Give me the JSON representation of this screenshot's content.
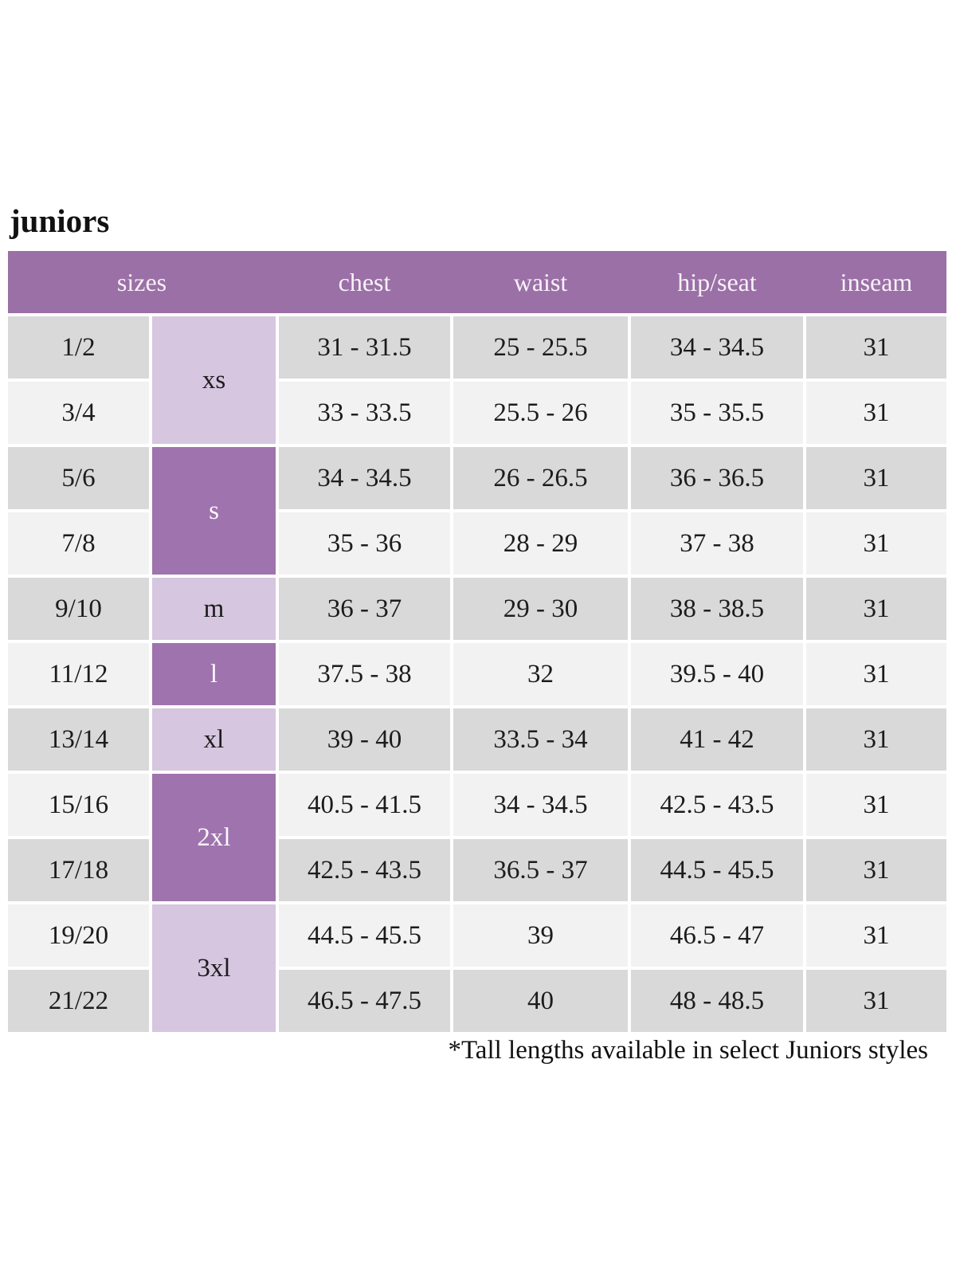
{
  "title": "juniors",
  "footnote": "*Tall lengths available in select Juniors styles",
  "colors": {
    "page_bg": "#ffffff",
    "header_bg": "#9b70a6",
    "header_text": "#f7f1f8",
    "dark_cell_bg": "#9f73ad",
    "light_cell_bg": "#d6c6df",
    "row_gray": "#d9d9d9",
    "row_light": "#f3f2f3",
    "text": "#1c1c1c"
  },
  "table": {
    "headers": {
      "sizes": "sizes",
      "chest": "chest",
      "waist": "waist",
      "hip_seat": "hip/seat",
      "inseam": "inseam"
    },
    "size_groups": [
      {
        "label": "xs",
        "tone": "light",
        "span_rows": 2
      },
      {
        "label": "s",
        "tone": "dark",
        "span_rows": 2
      },
      {
        "label": "m",
        "tone": "light",
        "span_rows": 1
      },
      {
        "label": "l",
        "tone": "dark",
        "span_rows": 1
      },
      {
        "label": "xl",
        "tone": "light",
        "span_rows": 1
      },
      {
        "label": "2xl",
        "tone": "dark",
        "span_rows": 2
      },
      {
        "label": "3xl",
        "tone": "light",
        "span_rows": 2
      }
    ],
    "rows": [
      {
        "size": "1/2",
        "chest": "31 - 31.5",
        "waist": "25 - 25.5",
        "hip_seat": "34 - 34.5",
        "inseam": "31"
      },
      {
        "size": "3/4",
        "chest": "33 - 33.5",
        "waist": "25.5 - 26",
        "hip_seat": "35 - 35.5",
        "inseam": "31"
      },
      {
        "size": "5/6",
        "chest": "34 - 34.5",
        "waist": "26 - 26.5",
        "hip_seat": "36 - 36.5",
        "inseam": "31"
      },
      {
        "size": "7/8",
        "chest": "35 - 36",
        "waist": "28 - 29",
        "hip_seat": "37 - 38",
        "inseam": "31"
      },
      {
        "size": "9/10",
        "chest": "36 - 37",
        "waist": "29 - 30",
        "hip_seat": "38 - 38.5",
        "inseam": "31"
      },
      {
        "size": "11/12",
        "chest": "37.5 - 38",
        "waist": "32",
        "hip_seat": "39.5 - 40",
        "inseam": "31"
      },
      {
        "size": "13/14",
        "chest": "39 - 40",
        "waist": "33.5 - 34",
        "hip_seat": "41 - 42",
        "inseam": "31"
      },
      {
        "size": "15/16",
        "chest": "40.5 - 41.5",
        "waist": "34 - 34.5",
        "hip_seat": "42.5 - 43.5",
        "inseam": "31"
      },
      {
        "size": "17/18",
        "chest": "42.5 - 43.5",
        "waist": "36.5 - 37",
        "hip_seat": "44.5 - 45.5",
        "inseam": "31"
      },
      {
        "size": "19/20",
        "chest": "44.5 - 45.5",
        "waist": "39",
        "hip_seat": "46.5 - 47",
        "inseam": "31"
      },
      {
        "size": "21/22",
        "chest": "46.5 - 47.5",
        "waist": "40",
        "hip_seat": "48 - 48.5",
        "inseam": "31"
      }
    ]
  }
}
